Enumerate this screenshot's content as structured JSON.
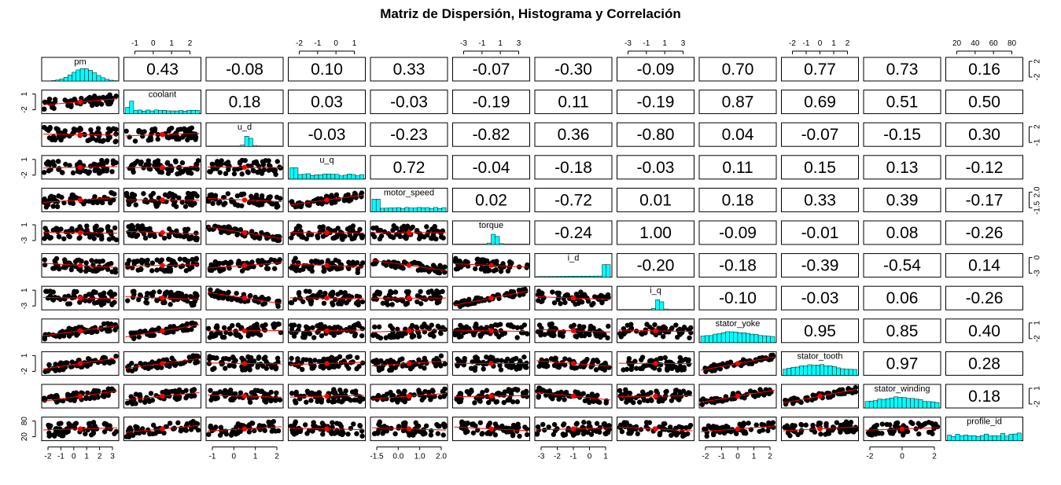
{
  "chart_data": {
    "type": "scatter",
    "title": "Matriz de Dispersión, Histograma y Correlación",
    "variables": [
      "pm",
      "coolant",
      "u_d",
      "u_q",
      "motor_speed",
      "torque",
      "i_d",
      "i_q",
      "stator_yoke",
      "stator_tooth",
      "stator_winding",
      "profile_id"
    ],
    "correlation_upper": [
      [
        null,
        0.43,
        -0.08,
        0.1,
        0.33,
        -0.07,
        -0.3,
        -0.09,
        0.7,
        0.77,
        0.73,
        0.16
      ],
      [
        null,
        null,
        0.18,
        0.03,
        -0.03,
        -0.19,
        0.11,
        -0.19,
        0.87,
        0.69,
        0.51,
        0.5
      ],
      [
        null,
        null,
        null,
        -0.03,
        -0.23,
        -0.82,
        0.36,
        -0.8,
        0.04,
        -0.07,
        -0.15,
        0.3
      ],
      [
        null,
        null,
        null,
        null,
        0.72,
        -0.04,
        -0.18,
        -0.03,
        0.11,
        0.15,
        0.13,
        -0.12
      ],
      [
        null,
        null,
        null,
        null,
        null,
        0.02,
        -0.72,
        0.01,
        0.18,
        0.33,
        0.39,
        -0.17
      ],
      [
        null,
        null,
        null,
        null,
        null,
        null,
        -0.24,
        1.0,
        -0.09,
        -0.01,
        0.08,
        -0.26
      ],
      [
        null,
        null,
        null,
        null,
        null,
        null,
        null,
        -0.2,
        -0.18,
        -0.39,
        -0.54,
        0.14
      ],
      [
        null,
        null,
        null,
        null,
        null,
        null,
        null,
        null,
        -0.1,
        -0.03,
        0.06,
        -0.26
      ],
      [
        null,
        null,
        null,
        null,
        null,
        null,
        null,
        null,
        null,
        0.95,
        0.85,
        0.4
      ],
      [
        null,
        null,
        null,
        null,
        null,
        null,
        null,
        null,
        null,
        null,
        0.97,
        0.28
      ],
      [
        null,
        null,
        null,
        null,
        null,
        null,
        null,
        null,
        null,
        null,
        null,
        0.18
      ],
      [
        null,
        null,
        null,
        null,
        null,
        null,
        null,
        null,
        null,
        null,
        null,
        null
      ]
    ],
    "axis_ticks": {
      "top": [
        {
          "column": 1,
          "ticks": [
            "-1",
            "0",
            "1",
            "2"
          ]
        },
        {
          "column": 3,
          "ticks": [
            "-2",
            "-1",
            "0",
            "1"
          ]
        },
        {
          "column": 5,
          "ticks": [
            "-3",
            "-1",
            "1",
            "3"
          ]
        },
        {
          "column": 7,
          "ticks": [
            "-3",
            "-1",
            "1",
            "3"
          ]
        },
        {
          "column": 9,
          "ticks": [
            "-2",
            "-1",
            "0",
            "1",
            "2"
          ]
        },
        {
          "column": 11,
          "ticks": [
            "20",
            "40",
            "60",
            "80"
          ]
        }
      ],
      "bottom": [
        {
          "column": 0,
          "ticks": [
            "-2",
            "-1",
            "0",
            "1",
            "2",
            "3"
          ]
        },
        {
          "column": 2,
          "ticks": [
            "-1",
            "0",
            "1",
            "2"
          ]
        },
        {
          "column": 4,
          "ticks": [
            "-1.5",
            "0.0",
            "1.0",
            "2.0"
          ]
        },
        {
          "column": 6,
          "ticks": [
            "-3",
            "-2",
            "-1",
            "0",
            "1"
          ]
        },
        {
          "column": 8,
          "ticks": [
            "-2",
            "-1",
            "0",
            "1",
            "2"
          ]
        },
        {
          "column": 10,
          "ticks": [
            "-2",
            "0",
            "2"
          ]
        }
      ],
      "left": [
        {
          "row": 1,
          "ticks": [
            "-2",
            "1"
          ]
        },
        {
          "row": 3,
          "ticks": [
            "-2",
            "1"
          ]
        },
        {
          "row": 5,
          "ticks": [
            "-3",
            "1"
          ]
        },
        {
          "row": 7,
          "ticks": [
            "-3",
            "1"
          ]
        },
        {
          "row": 9,
          "ticks": [
            "-2",
            "1"
          ]
        },
        {
          "row": 11,
          "ticks": [
            "20",
            "80"
          ]
        }
      ],
      "right": [
        {
          "row": 0,
          "ticks": [
            "-2",
            "2"
          ]
        },
        {
          "row": 2,
          "ticks": [
            "-1",
            "2"
          ]
        },
        {
          "row": 4,
          "ticks": [
            "-1.5",
            "2.0"
          ]
        },
        {
          "row": 6,
          "ticks": [
            "-3",
            "0"
          ]
        },
        {
          "row": 8,
          "ticks": [
            "-2",
            "1"
          ]
        },
        {
          "row": 10,
          "ticks": [
            "-2",
            "1"
          ]
        }
      ]
    },
    "diagonal": "histogram",
    "lower": "scatter with loess smooth",
    "colors": {
      "histogram": "#00FFFF",
      "smooth": "#FF0000",
      "points": "#000000"
    }
  }
}
